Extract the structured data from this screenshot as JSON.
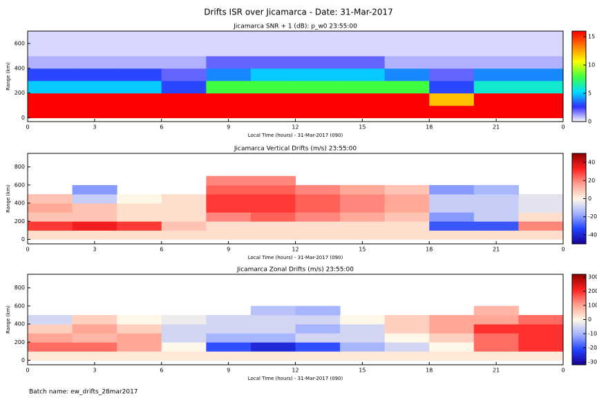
{
  "title": "Drifts ISR over Jicamarca - Date: 31-Mar-2017",
  "footer": "Batch name: ew_drifts_28mar2017",
  "chart_data": [
    {
      "type": "heatmap",
      "title": "Jicamarca SNR + 1 (dB): p_w0 23:55:00",
      "xlabel": "Local Time (hours) - 31-Mar-2017 (090)",
      "ylabel": "Range (km)",
      "xlim": [
        0,
        24
      ],
      "xticks": [
        0,
        3,
        6,
        9,
        12,
        15,
        18,
        21,
        {
          "value": 24,
          "label": "0"
        }
      ],
      "ylim": [
        -30,
        700
      ],
      "yticks": [
        0,
        200,
        400,
        600
      ],
      "xbins": [
        0,
        2,
        4,
        6,
        8,
        10,
        12,
        14,
        16,
        18,
        20,
        22,
        24
      ],
      "ybins": [
        0,
        100,
        200,
        300,
        400,
        500,
        600,
        700
      ],
      "values": [
        [
          16,
          16,
          16,
          16,
          16,
          16,
          16,
          16,
          16,
          16,
          16,
          16
        ],
        [
          16,
          16,
          16,
          16,
          16,
          16,
          16,
          16,
          16,
          12,
          16,
          16
        ],
        [
          5,
          5,
          5,
          3,
          8,
          8,
          8,
          8,
          8,
          3,
          6,
          6
        ],
        [
          3,
          3,
          3,
          2,
          4,
          5,
          5,
          5,
          4,
          2,
          4,
          4
        ],
        [
          1,
          1,
          1,
          1,
          2,
          2,
          2,
          2,
          1,
          1,
          1,
          1
        ],
        [
          0.5,
          0.5,
          0.5,
          0.5,
          0.5,
          0.5,
          0.5,
          0.5,
          0.5,
          0.5,
          0.5,
          0.5
        ],
        [
          0.5,
          0.5,
          0.5,
          0.5,
          0.5,
          0.5,
          0.5,
          0.5,
          0.5,
          0.5,
          0.5,
          0.5
        ]
      ],
      "clim": [
        0,
        16
      ],
      "cticks": [
        0,
        5,
        10,
        15
      ],
      "colorscale": [
        "#ffffff",
        "#3030ff",
        "#00e0ff",
        "#40ff40",
        "#ffff00",
        "#ff8000",
        "#ff0000"
      ]
    },
    {
      "type": "heatmap",
      "title": "Jicamarca Vertical Drifts (m/s) 23:55:00",
      "xlabel": "Local Time (hours) - 31-Mar-2017 (090)",
      "ylabel": "Range (km)",
      "xlim": [
        0,
        24
      ],
      "xticks": [
        0,
        3,
        6,
        9,
        12,
        15,
        18,
        21,
        {
          "value": 24,
          "label": "0"
        }
      ],
      "ylim": [
        -50,
        950
      ],
      "yticks": [
        0,
        200,
        400,
        600,
        800
      ],
      "xbins": [
        0,
        2,
        4,
        6,
        8,
        10,
        12,
        14,
        16,
        18,
        20,
        22,
        24
      ],
      "ybins": [
        0,
        100,
        200,
        300,
        400,
        500,
        600,
        700
      ],
      "values": [
        [
          5,
          5,
          5,
          5,
          5,
          5,
          5,
          5,
          5,
          5,
          5,
          5
        ],
        [
          30,
          35,
          30,
          10,
          5,
          5,
          5,
          5,
          5,
          -30,
          -30,
          20
        ],
        [
          10,
          10,
          5,
          5,
          20,
          25,
          20,
          15,
          10,
          -20,
          -10,
          5
        ],
        [
          15,
          10,
          5,
          5,
          30,
          30,
          25,
          20,
          15,
          -10,
          -10,
          -5
        ],
        [
          10,
          -10,
          0,
          5,
          30,
          30,
          25,
          20,
          15,
          -10,
          -10,
          -5
        ],
        [
          null,
          -20,
          null,
          null,
          25,
          25,
          20,
          15,
          10,
          -20,
          -15,
          null
        ],
        [
          null,
          null,
          null,
          null,
          20,
          20,
          null,
          null,
          null,
          null,
          null,
          null
        ]
      ],
      "clim": [
        -50,
        50
      ],
      "cticks": [
        -40,
        -20,
        0,
        20,
        40
      ],
      "colorscale": [
        "#1a0090",
        "#2040ff",
        "#a0b0ff",
        "#fff8e8",
        "#ffa090",
        "#ff2020",
        "#900000"
      ]
    },
    {
      "type": "heatmap",
      "title": "Jicamarca Zonal Drifts (m/s) 23:55:00",
      "xlabel": "Local Time (hours) - 31-Mar-2017 (090)",
      "ylabel": "Range (km)",
      "xlim": [
        0,
        24
      ],
      "xticks": [
        0,
        3,
        6,
        9,
        12,
        15,
        18,
        21,
        {
          "value": 24,
          "label": "0"
        }
      ],
      "ylim": [
        -50,
        950
      ],
      "yticks": [
        0,
        200,
        400,
        600,
        800
      ],
      "xbins": [
        0,
        2,
        4,
        6,
        8,
        10,
        12,
        14,
        16,
        18,
        20,
        22,
        24
      ],
      "ybins": [
        0,
        100,
        200,
        300,
        400,
        500,
        600
      ],
      "values": [
        [
          20,
          20,
          20,
          20,
          20,
          20,
          20,
          20,
          20,
          20,
          20,
          20
        ],
        [
          150,
          150,
          100,
          0,
          -200,
          -250,
          -200,
          -100,
          -50,
          0,
          150,
          200
        ],
        [
          100,
          80,
          100,
          -50,
          -100,
          -100,
          -50,
          -50,
          0,
          50,
          150,
          200
        ],
        [
          50,
          100,
          50,
          -50,
          -50,
          -50,
          -100,
          -50,
          50,
          100,
          200,
          200
        ],
        [
          -50,
          50,
          0,
          -20,
          -50,
          -50,
          -50,
          0,
          50,
          100,
          100,
          150
        ],
        [
          null,
          null,
          null,
          null,
          null,
          -80,
          -100,
          null,
          null,
          null,
          80,
          null
        ]
      ],
      "clim": [
        -320,
        320
      ],
      "cticks": [
        -300,
        -200,
        -100,
        0,
        100,
        200,
        300
      ],
      "colorscale": [
        "#1a0090",
        "#2040ff",
        "#a0b0ff",
        "#fff8e8",
        "#ffa090",
        "#ff2020",
        "#900000"
      ]
    }
  ]
}
